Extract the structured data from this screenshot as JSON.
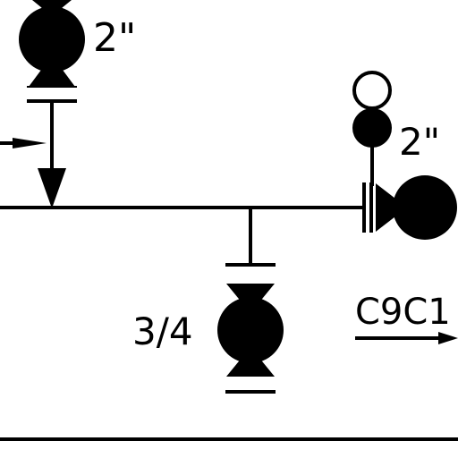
{
  "labels": {
    "top_valve_size": "2\"",
    "right_valve_size": "2\"",
    "bottom_valve_size": "3/4",
    "line_tag": "C9C1"
  },
  "colors": {
    "ink": "#000000",
    "paper": "#ffffff"
  },
  "symbols": [
    "gate-valve-icon",
    "flow-arrow-icon",
    "blind-flange-icon",
    "instrument-bubble-icon"
  ]
}
